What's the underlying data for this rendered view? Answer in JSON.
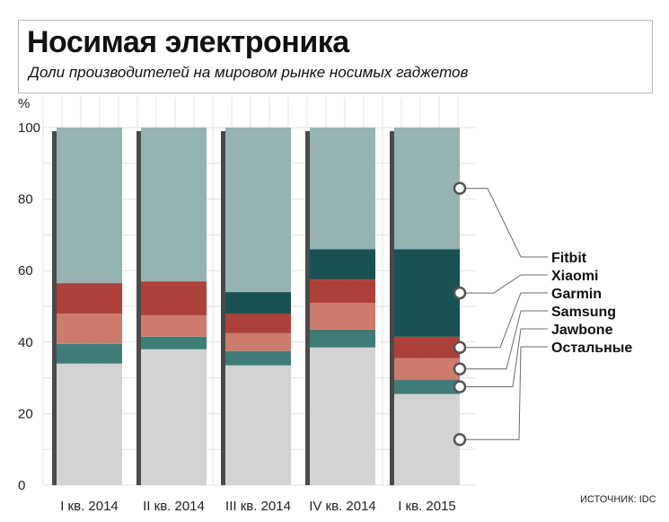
{
  "title": "Носимая электроника",
  "subtitle": "Доли производителей на мировом рынке носимых гаджетов",
  "unit": "%",
  "source": "ИСТОЧНИК: IDC",
  "chart_data": {
    "type": "bar",
    "stacked": true,
    "categories": [
      "I кв. 2014",
      "II кв. 2014",
      "III кв. 2014",
      "IV кв. 2014",
      "I кв. 2015"
    ],
    "ylim": [
      0,
      100
    ],
    "yticks": [
      0,
      20,
      40,
      60,
      80,
      100
    ],
    "grid": true,
    "legend_placement": "right",
    "series": [
      {
        "name": "Остальные",
        "color": "#d2d3d4",
        "values": [
          34,
          38,
          33.5,
          38.5,
          25.5
        ]
      },
      {
        "name": "Jawbone",
        "color": "#3f7c78",
        "values": [
          5.5,
          3.5,
          4,
          5,
          4
        ]
      },
      {
        "name": "Samsung",
        "color": "#cc7b6c",
        "values": [
          8.5,
          6,
          5,
          7.5,
          6
        ]
      },
      {
        "name": "Garmin",
        "color": "#ad4139",
        "values": [
          8.5,
          9.5,
          5.5,
          6.5,
          6
        ]
      },
      {
        "name": "Xiaomi",
        "color": "#1a5254",
        "values": [
          0,
          0,
          6,
          8.5,
          24.5
        ]
      },
      {
        "name": "Fitbit",
        "color": "#94b3b1",
        "values": [
          43.5,
          43,
          46,
          34,
          34
        ]
      }
    ]
  }
}
